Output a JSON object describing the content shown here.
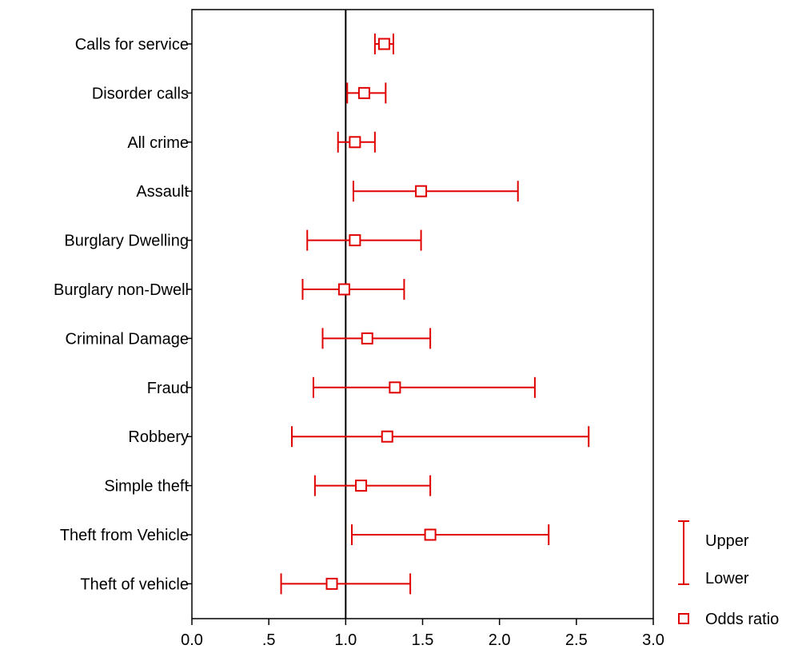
{
  "chart_data": {
    "type": "forest",
    "title": "",
    "xlabel": "",
    "ylabel": "",
    "xlim": [
      0.0,
      3.0
    ],
    "reference_line": 1.0,
    "x_ticks": [
      {
        "value": 0.0,
        "label": "0.0"
      },
      {
        "value": 0.5,
        "label": ".5"
      },
      {
        "value": 1.0,
        "label": "1.0"
      },
      {
        "value": 1.5,
        "label": "1.5"
      },
      {
        "value": 2.0,
        "label": "2.0"
      },
      {
        "value": 2.5,
        "label": "2.5"
      },
      {
        "value": 3.0,
        "label": "3.0"
      }
    ],
    "categories": [
      "Calls for service",
      "Disorder calls",
      "All crime",
      "Assault",
      "Burglary Dwelling",
      "Burglary non-Dwell",
      "Criminal Damage",
      "Fraud",
      "Robbery",
      "Simple theft",
      "Theft from Vehicle",
      "Theft of vehicle"
    ],
    "series": [
      {
        "name": "Upper",
        "values": [
          1.31,
          1.26,
          1.19,
          2.12,
          1.49,
          1.38,
          1.55,
          2.23,
          2.58,
          1.55,
          2.32,
          1.42
        ]
      },
      {
        "name": "Lower",
        "values": [
          1.19,
          1.01,
          0.95,
          1.05,
          0.75,
          0.72,
          0.85,
          0.79,
          0.65,
          0.8,
          1.04,
          0.58
        ]
      },
      {
        "name": "Odds ratio",
        "values": [
          1.25,
          1.12,
          1.06,
          1.49,
          1.06,
          0.99,
          1.14,
          1.32,
          1.27,
          1.1,
          1.55,
          0.91
        ]
      }
    ],
    "legend": {
      "position": "bottom-right",
      "items": [
        {
          "label": "Upper",
          "icon": "error-bar-icon"
        },
        {
          "label": "Lower",
          "icon": "error-bar-icon"
        },
        {
          "label": "Odds ratio",
          "icon": "square-marker-icon"
        }
      ]
    },
    "colors": {
      "series": "#e00000",
      "axis": "#000000",
      "reference": "#000000"
    }
  }
}
